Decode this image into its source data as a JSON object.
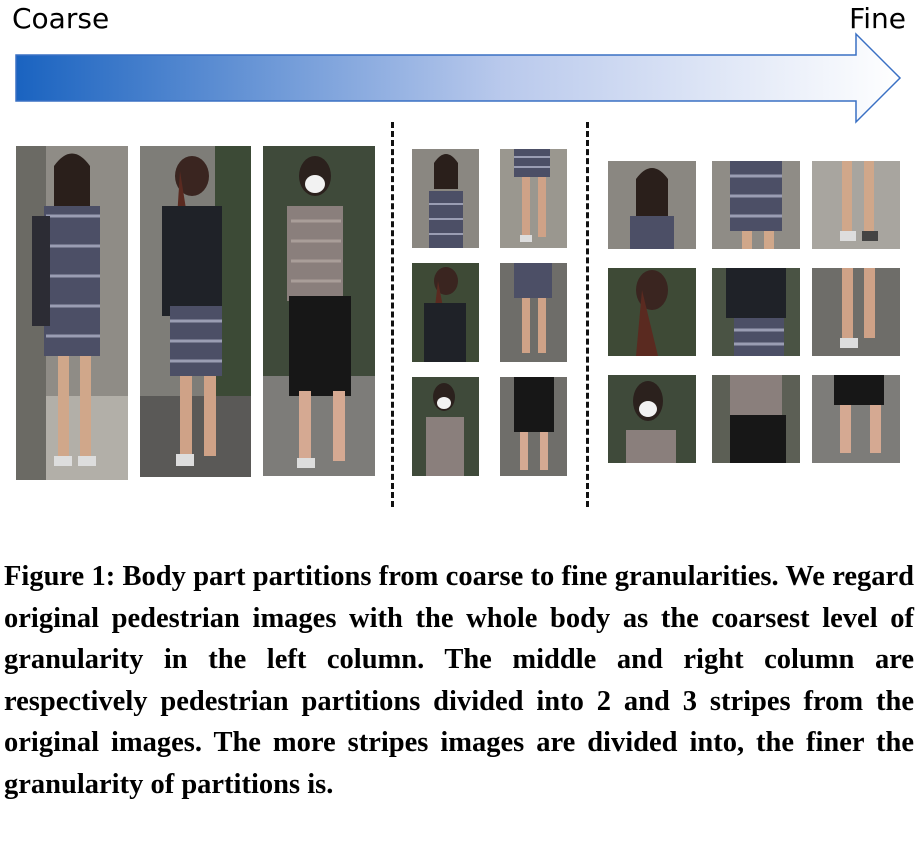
{
  "figure": {
    "coarse_label": "Coarse",
    "fine_label": "Fine",
    "caption_label": "Figure 1:",
    "caption_text": "Body part partitions from coarse to fine granularities. We regard original pedestrian images with the whole body as the coarsest level of granularity in the left column. The middle and right column are respectively pedestrian partitions divided into 2 and 3 stripes from the original images. The more stripes images are divided into, the finer the granularity of partitions is."
  },
  "colors": {
    "arrow_start": "#1a63c0",
    "arrow_end": "#ffffff",
    "arrow_stroke": "#1a63c0"
  },
  "columns": [
    {
      "name": "original whole-body images",
      "count": 3
    },
    {
      "name": "2-stripe partitions",
      "count": 6
    },
    {
      "name": "3-stripe partitions",
      "count": 9
    }
  ]
}
